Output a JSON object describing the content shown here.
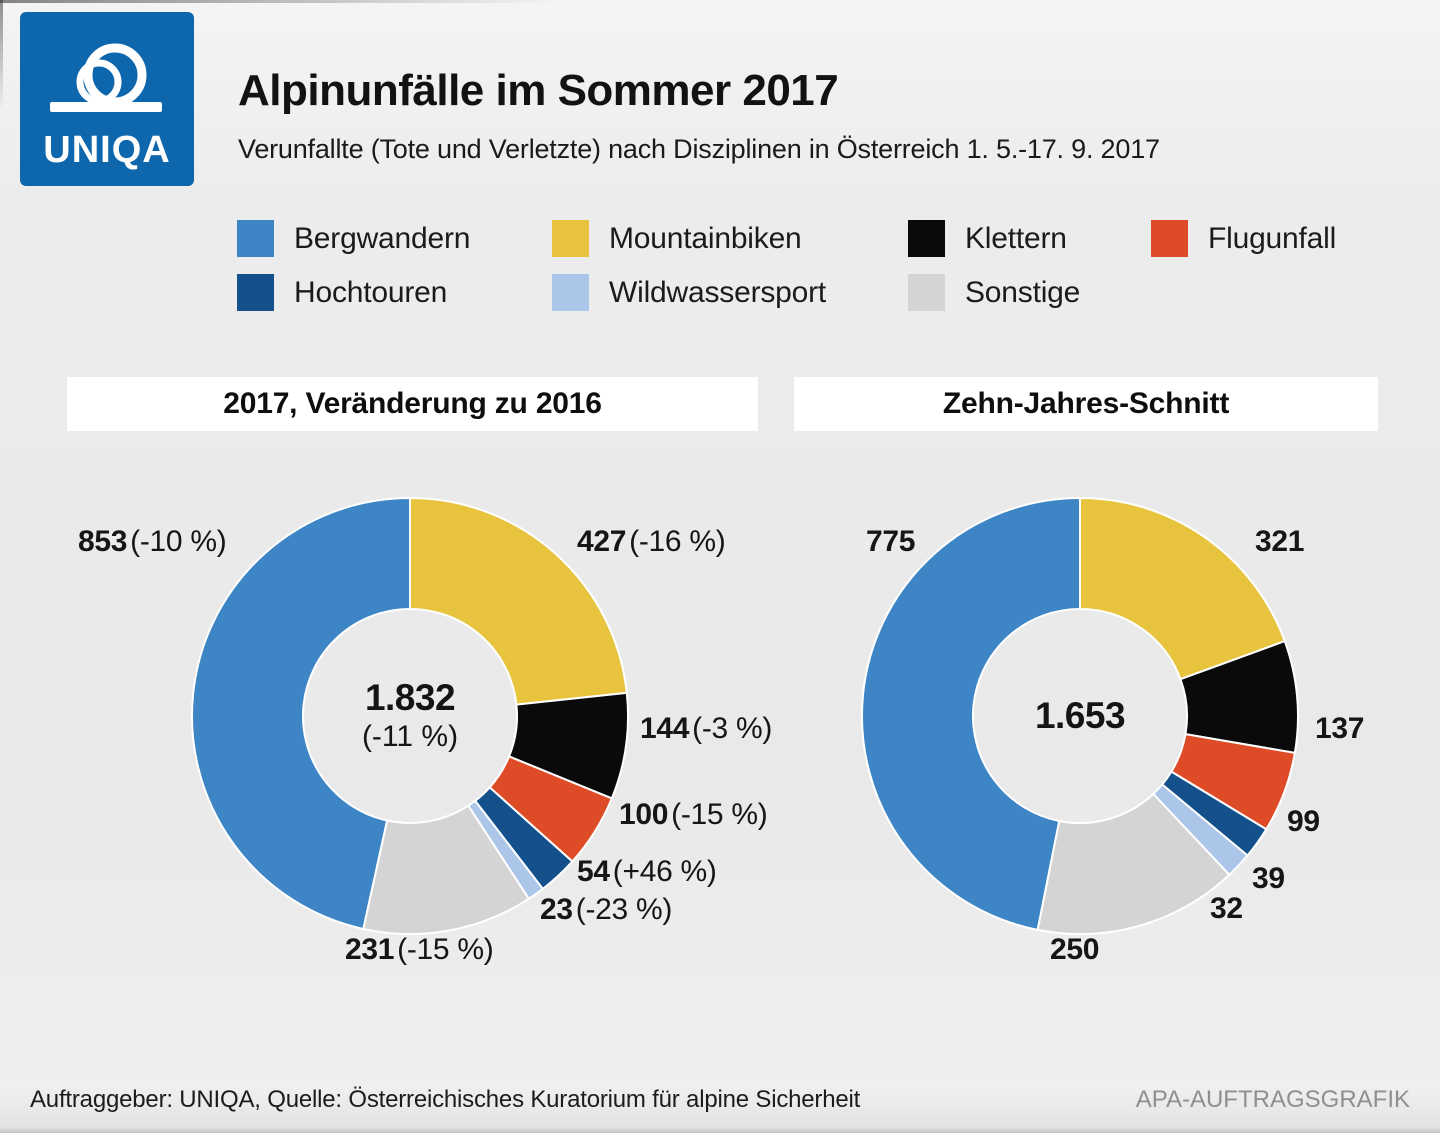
{
  "page": {
    "title": "Alpinunfälle im Sommer 2017",
    "subtitle": "Verunfallte (Tote und Verletzte) nach Disziplinen in Österreich 1. 5.-17. 9. 2017"
  },
  "logo": {
    "text": "UNIQA",
    "color": "#0e67ad"
  },
  "legend": {
    "items": [
      {
        "label": "Bergwandern",
        "color": "#3e85c5"
      },
      {
        "label": "Mountainbiken",
        "color": "#e8c43e"
      },
      {
        "label": "Klettern",
        "color": "#0a0a0a"
      },
      {
        "label": "Flugunfall",
        "color": "#de4b27"
      },
      {
        "label": "Hochtouren",
        "color": "#14508c"
      },
      {
        "label": "Wildwassersport",
        "color": "#abc6e9"
      },
      {
        "label": "Sonstige",
        "color": "#d4d4d4"
      }
    ]
  },
  "chart_data": [
    {
      "type": "donut",
      "title": "2017, Veränderung zu 2016",
      "center_total": "1.832",
      "center_change": "(-11 %)",
      "total": 1832,
      "start": "top",
      "direction": "clockwise",
      "slices": [
        {
          "name": "Mountainbiken",
          "value": 427,
          "label": "427",
          "change": "(-16 %)",
          "color": "#e8c43e"
        },
        {
          "name": "Klettern",
          "value": 144,
          "label": "144",
          "change": "(-3 %)",
          "color": "#0a0a0a"
        },
        {
          "name": "Flugunfall",
          "value": 100,
          "label": "100",
          "change": "(-15 %)",
          "color": "#de4b27"
        },
        {
          "name": "Hochtouren",
          "value": 54,
          "label": "54",
          "change": "(+46 %)",
          "color": "#14508c"
        },
        {
          "name": "Wildwassersport",
          "value": 23,
          "label": "23",
          "change": "(-23 %)",
          "color": "#abc6e9"
        },
        {
          "name": "Sonstige",
          "value": 231,
          "label": "231",
          "change": "(-15 %)",
          "color": "#d4d4d4"
        },
        {
          "name": "Bergwandern",
          "value": 853,
          "label": "853",
          "change": "(-10 %)",
          "color": "#3e85c5"
        }
      ]
    },
    {
      "type": "donut",
      "title": "Zehn-Jahres-Schnitt",
      "center_total": "1.653",
      "total": 1653,
      "start": "top",
      "direction": "clockwise",
      "slices": [
        {
          "name": "Mountainbiken",
          "value": 321,
          "label": "321",
          "color": "#e8c43e"
        },
        {
          "name": "Klettern",
          "value": 137,
          "label": "137",
          "color": "#0a0a0a"
        },
        {
          "name": "Flugunfall",
          "value": 99,
          "label": "99",
          "color": "#de4b27"
        },
        {
          "name": "Hochtouren",
          "value": 39,
          "label": "39",
          "color": "#14508c"
        },
        {
          "name": "Wildwassersport",
          "value": 32,
          "label": "32",
          "color": "#abc6e9"
        },
        {
          "name": "Sonstige",
          "value": 250,
          "label": "250",
          "color": "#d4d4d4"
        },
        {
          "name": "Bergwandern",
          "value": 775,
          "label": "775",
          "color": "#3e85c5"
        }
      ]
    }
  ],
  "footer": {
    "source": "Auftraggeber: UNIQA, Quelle: Österreichisches Kuratorium für alpine Sicherheit",
    "credit": "APA-AUFTRAGSGRAFIK"
  }
}
